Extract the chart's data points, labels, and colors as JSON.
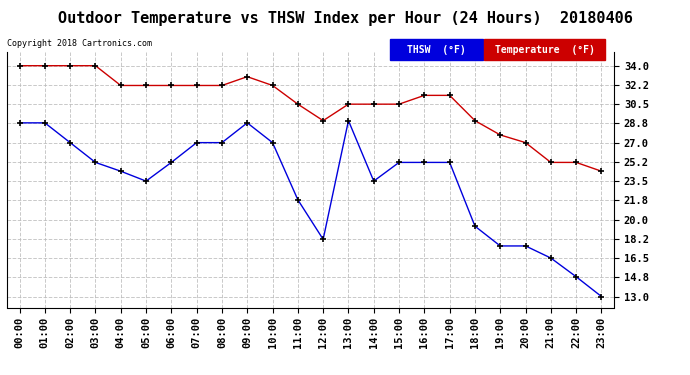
{
  "title": "Outdoor Temperature vs THSW Index per Hour (24 Hours)  20180406",
  "copyright": "Copyright 2018 Cartronics.com",
  "hours": [
    "00:00",
    "01:00",
    "02:00",
    "03:00",
    "04:00",
    "05:00",
    "06:00",
    "07:00",
    "08:00",
    "09:00",
    "10:00",
    "11:00",
    "12:00",
    "13:00",
    "14:00",
    "15:00",
    "16:00",
    "17:00",
    "18:00",
    "19:00",
    "20:00",
    "21:00",
    "22:00",
    "23:00"
  ],
  "thsw_values": [
    28.8,
    28.8,
    27.0,
    25.2,
    24.4,
    23.5,
    25.2,
    27.0,
    27.0,
    28.8,
    27.0,
    21.8,
    18.2,
    29.0,
    23.5,
    25.2,
    25.2,
    25.2,
    19.4,
    17.6,
    17.6,
    16.5,
    14.8,
    13.0
  ],
  "temp_values": [
    34.0,
    34.0,
    34.0,
    34.0,
    32.2,
    32.2,
    32.2,
    32.2,
    32.2,
    33.0,
    32.2,
    30.5,
    29.0,
    30.5,
    30.5,
    30.5,
    31.3,
    31.3,
    29.0,
    27.7,
    27.0,
    25.2,
    25.2,
    24.4
  ],
  "thsw_color": "#0000dd",
  "temp_color": "#cc0000",
  "background_color": "#ffffff",
  "plot_bg_color": "#ffffff",
  "grid_color": "#bbbbbb",
  "ylim_min": 12.0,
  "ylim_max": 35.2,
  "yticks": [
    13.0,
    14.8,
    16.5,
    18.2,
    20.0,
    21.8,
    23.5,
    25.2,
    27.0,
    28.8,
    30.5,
    32.2,
    34.0
  ],
  "title_fontsize": 11,
  "tick_fontsize": 7.5,
  "legend_thsw_label": "THSW  (°F)",
  "legend_temp_label": "Temperature  (°F)"
}
